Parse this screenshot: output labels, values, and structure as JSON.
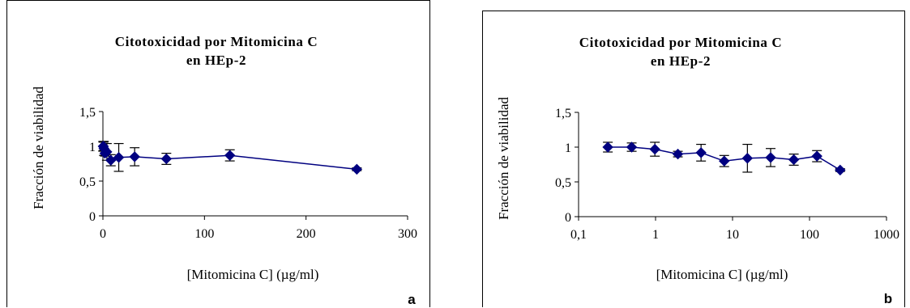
{
  "chart_data": [
    {
      "type": "line",
      "panel_label": "a",
      "title": "Citotoxicidad por Mitomicina C",
      "subtitle": "en HEp-2",
      "xlabel": "[Mitomicina C] (µg/ml)",
      "ylabel": "Fracción de viabilidad",
      "xscale": "linear",
      "xlim": [
        0,
        300
      ],
      "ylim": [
        0,
        1.5
      ],
      "xticks": [
        "0",
        "100",
        "200",
        "300"
      ],
      "yticks": [
        "0",
        "0,5",
        "1",
        "1,5"
      ],
      "grid": false,
      "legend": false,
      "series_color": "#000080",
      "x": [
        0.24,
        0.49,
        0.98,
        1.95,
        3.9,
        7.8,
        15.6,
        31.25,
        62.5,
        125,
        250
      ],
      "y": [
        1.0,
        1.0,
        0.97,
        0.9,
        0.92,
        0.8,
        0.84,
        0.85,
        0.82,
        0.87,
        0.67
      ],
      "err": [
        0.07,
        0.06,
        0.1,
        0.04,
        0.12,
        0.08,
        0.2,
        0.13,
        0.08,
        0.08,
        0.02
      ]
    },
    {
      "type": "line",
      "panel_label": "b",
      "title": "Citotoxicidad por Mitomicina C",
      "subtitle": "en HEp-2",
      "xlabel": "[Mitomicina C] (µg/ml)",
      "ylabel": "Fracción de viabilidad",
      "xscale": "log",
      "xlim": [
        0.1,
        1000
      ],
      "ylim": [
        0,
        1.5
      ],
      "xticks": [
        "0,1",
        "1",
        "10",
        "100",
        "1000"
      ],
      "yticks": [
        "0",
        "0,5",
        "1",
        "1,5"
      ],
      "grid": false,
      "legend": false,
      "series_color": "#000080",
      "x": [
        0.24,
        0.49,
        0.98,
        1.95,
        3.9,
        7.8,
        15.6,
        31.25,
        62.5,
        125,
        250
      ],
      "y": [
        1.0,
        1.0,
        0.97,
        0.9,
        0.92,
        0.8,
        0.84,
        0.85,
        0.82,
        0.87,
        0.67
      ],
      "err": [
        0.07,
        0.06,
        0.1,
        0.04,
        0.12,
        0.08,
        0.2,
        0.13,
        0.08,
        0.08,
        0.02
      ]
    }
  ]
}
